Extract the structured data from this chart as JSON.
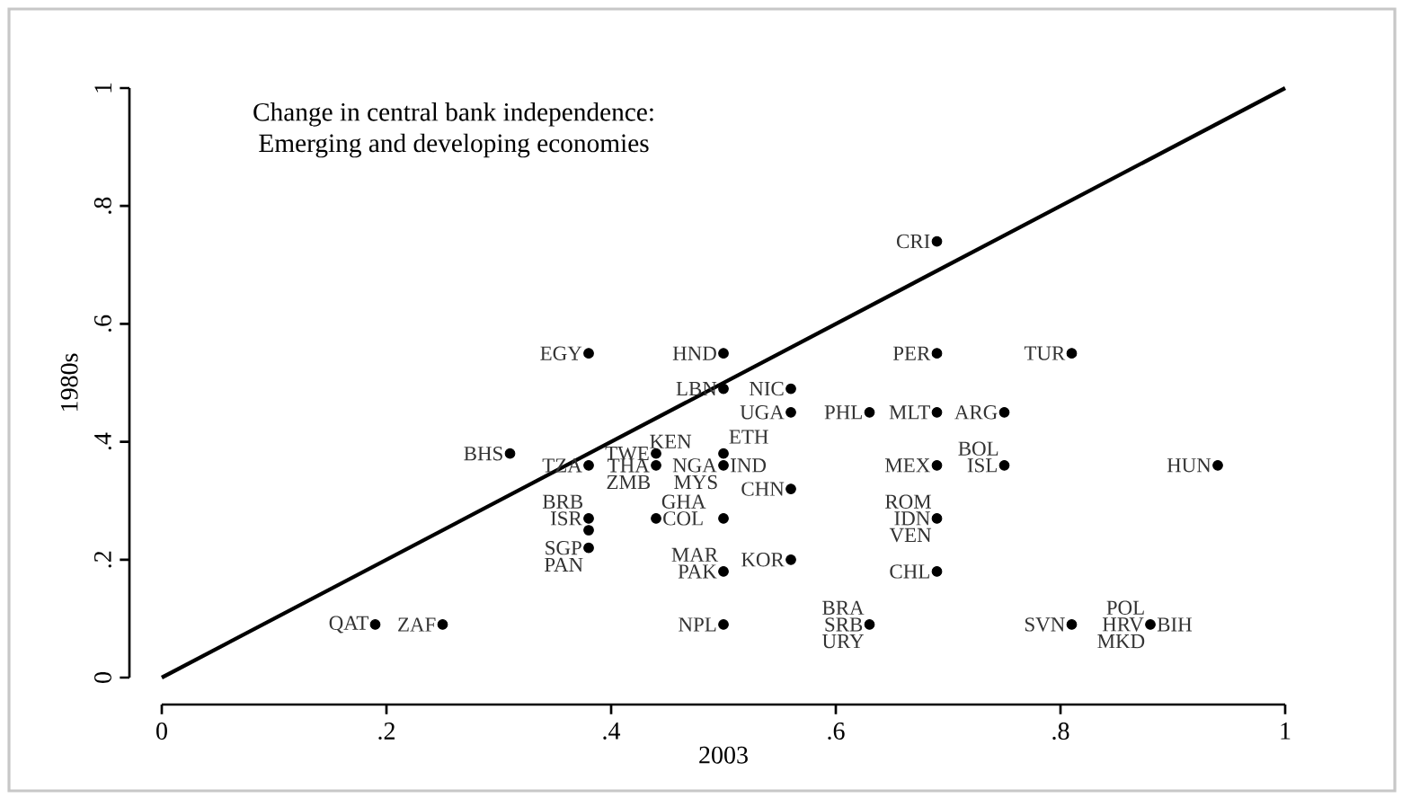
{
  "chart_data": {
    "type": "scatter",
    "title": "Change in central bank independence:",
    "subtitle": "Emerging and developing economies",
    "xlabel": "2003",
    "ylabel": "1980s",
    "marker": "circle",
    "xlim": [
      0,
      1
    ],
    "ylim": [
      0,
      1
    ],
    "xticks": [
      0,
      {
        "value": 0.2,
        "label": ".2"
      },
      {
        "value": 0.4,
        "label": ".4"
      },
      {
        "value": 0.6,
        "label": ".6"
      },
      {
        "value": 0.8,
        "label": ".8"
      },
      1
    ],
    "yticks": [
      0,
      {
        "value": 0.2,
        "label": ".2"
      },
      {
        "value": 0.4,
        "label": ".4"
      },
      {
        "value": 0.6,
        "label": ".6"
      },
      {
        "value": 0.8,
        "label": ".8"
      },
      1
    ],
    "series": [
      {
        "color": "#000000",
        "x": [
          0.19,
          0.25,
          0.5,
          0.63,
          0.81,
          0.88,
          0.5,
          0.69,
          0.56,
          0.38,
          0.38,
          0.38,
          0.44,
          0.5,
          0.69,
          0.56,
          0.31,
          0.44,
          0.5,
          0.38,
          0.44,
          0.5,
          0.69,
          0.75,
          0.94,
          0.63,
          0.69,
          0.75,
          0.56,
          0.5,
          0.56,
          0.38,
          0.5,
          0.69,
          0.81,
          0.69
        ],
        "values": [
          0.09,
          0.09,
          0.09,
          0.09,
          0.09,
          0.09,
          0.18,
          0.18,
          0.2,
          0.22,
          0.25,
          0.27,
          0.27,
          0.27,
          0.27,
          0.32,
          0.38,
          0.38,
          0.38,
          0.36,
          0.36,
          0.36,
          0.36,
          0.36,
          0.36,
          0.45,
          0.45,
          0.45,
          0.45,
          0.49,
          0.49,
          0.55,
          0.55,
          0.55,
          0.55,
          0.74
        ]
      },
      {
        "type": "line",
        "color": "#000000",
        "marker": "none",
        "x": [
          0,
          1
        ],
        "values": [
          0,
          1
        ]
      }
    ],
    "annotations": [
      {
        "text": "QAT",
        "x": 0.19,
        "y": 0.09
      },
      {
        "text": "ZAF",
        "x": 0.25,
        "y": 0.09
      },
      {
        "text": "NPL",
        "x": 0.5,
        "y": 0.09
      },
      {
        "text": "BRA",
        "x": 0.63,
        "y": 0.09
      },
      {
        "text": "SRB",
        "x": 0.63,
        "y": 0.09
      },
      {
        "text": "URY",
        "x": 0.63,
        "y": 0.09
      },
      {
        "text": "SVN",
        "x": 0.81,
        "y": 0.09
      },
      {
        "text": "POL",
        "x": 0.88,
        "y": 0.09
      },
      {
        "text": "HRV",
        "x": 0.88,
        "y": 0.09
      },
      {
        "text": "MKD",
        "x": 0.88,
        "y": 0.09
      },
      {
        "text": "BIH",
        "x": 0.88,
        "y": 0.09
      },
      {
        "text": "PAK",
        "x": 0.5,
        "y": 0.18
      },
      {
        "text": "MAR",
        "x": 0.5,
        "y": 0.18
      },
      {
        "text": "CHL",
        "x": 0.69,
        "y": 0.18
      },
      {
        "text": "KOR",
        "x": 0.56,
        "y": 0.2
      },
      {
        "text": "SGP",
        "x": 0.38,
        "y": 0.22
      },
      {
        "text": "PAN",
        "x": 0.38,
        "y": 0.22
      },
      {
        "text": "ISR",
        "x": 0.38,
        "y": 0.27
      },
      {
        "text": "BRB",
        "x": 0.38,
        "y": 0.27
      },
      {
        "text": "COL",
        "x": 0.44,
        "y": 0.27
      },
      {
        "text": "GHA",
        "x": 0.44,
        "y": 0.27
      },
      {
        "text": "ROM",
        "x": 0.69,
        "y": 0.27
      },
      {
        "text": "IDN",
        "x": 0.69,
        "y": 0.27
      },
      {
        "text": "VEN",
        "x": 0.69,
        "y": 0.27
      },
      {
        "text": "CHN",
        "x": 0.56,
        "y": 0.32
      },
      {
        "text": "MYS",
        "x": 0.5,
        "y": 0.36
      },
      {
        "text": "ZMB",
        "x": 0.44,
        "y": 0.36
      },
      {
        "text": "TZA",
        "x": 0.38,
        "y": 0.36
      },
      {
        "text": "THA",
        "x": 0.44,
        "y": 0.36
      },
      {
        "text": "NGA",
        "x": 0.5,
        "y": 0.36
      },
      {
        "text": "IND",
        "x": 0.5,
        "y": 0.36
      },
      {
        "text": "TWE",
        "x": 0.44,
        "y": 0.38
      },
      {
        "text": "KEN",
        "x": 0.44,
        "y": 0.38
      },
      {
        "text": "ETH",
        "x": 0.5,
        "y": 0.38
      },
      {
        "text": "BHS",
        "x": 0.31,
        "y": 0.38
      },
      {
        "text": "MEX",
        "x": 0.69,
        "y": 0.36
      },
      {
        "text": "ISL",
        "x": 0.75,
        "y": 0.36
      },
      {
        "text": "BOL",
        "x": 0.75,
        "y": 0.36
      },
      {
        "text": "HUN",
        "x": 0.94,
        "y": 0.36
      },
      {
        "text": "PHL",
        "x": 0.63,
        "y": 0.45
      },
      {
        "text": "MLT",
        "x": 0.69,
        "y": 0.45
      },
      {
        "text": "ARG",
        "x": 0.75,
        "y": 0.45
      },
      {
        "text": "UGA",
        "x": 0.56,
        "y": 0.45
      },
      {
        "text": "LBN",
        "x": 0.5,
        "y": 0.49
      },
      {
        "text": "NIC",
        "x": 0.56,
        "y": 0.49
      },
      {
        "text": "EGY",
        "x": 0.38,
        "y": 0.55
      },
      {
        "text": "HND",
        "x": 0.5,
        "y": 0.55
      },
      {
        "text": "PER",
        "x": 0.69,
        "y": 0.55
      },
      {
        "text": "TUR",
        "x": 0.81,
        "y": 0.55
      },
      {
        "text": "CRI",
        "x": 0.69,
        "y": 0.74
      }
    ]
  }
}
